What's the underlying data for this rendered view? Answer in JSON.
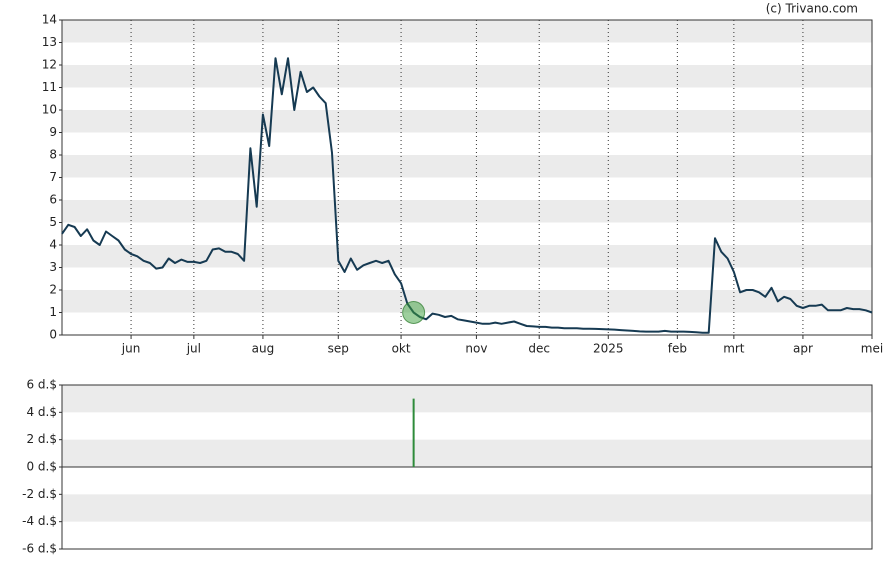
{
  "attribution": "(c) Trivano.com",
  "chart_data": [
    {
      "type": "line",
      "color": "#163a52",
      "categories": [
        null,
        null,
        null,
        null,
        null,
        null,
        null,
        null,
        null,
        null,
        null,
        "jun",
        null,
        null,
        null,
        null,
        null,
        null,
        null,
        null,
        null,
        "jul",
        null,
        null,
        null,
        null,
        null,
        null,
        null,
        null,
        null,
        null,
        "aug",
        null,
        null,
        null,
        null,
        null,
        null,
        null,
        null,
        null,
        null,
        null,
        "sep",
        null,
        null,
        null,
        null,
        null,
        null,
        null,
        null,
        null,
        "okt",
        null,
        null,
        null,
        null,
        null,
        null,
        null,
        null,
        null,
        null,
        null,
        "nov",
        null,
        null,
        null,
        null,
        null,
        null,
        null,
        null,
        null,
        "dec",
        null,
        null,
        null,
        null,
        null,
        null,
        null,
        null,
        null,
        null,
        "2025",
        null,
        null,
        null,
        null,
        null,
        null,
        null,
        null,
        null,
        null,
        "feb",
        null,
        null,
        null,
        null,
        null,
        null,
        null,
        null,
        "mrt",
        null,
        null,
        null,
        null,
        null,
        null,
        null,
        null,
        null,
        null,
        "apr",
        null,
        null,
        null,
        null,
        null,
        null,
        null,
        null,
        null,
        null,
        "mei"
      ],
      "values": [
        4.5,
        4.9,
        4.8,
        4.4,
        4.7,
        4.2,
        4.0,
        4.6,
        4.4,
        4.2,
        3.8,
        3.6,
        3.5,
        3.3,
        3.2,
        2.95,
        3.0,
        3.4,
        3.2,
        3.35,
        3.25,
        3.25,
        3.2,
        3.3,
        3.8,
        3.85,
        3.7,
        3.7,
        3.6,
        3.3,
        8.3,
        5.7,
        9.8,
        8.4,
        12.3,
        10.7,
        12.3,
        10.0,
        11.7,
        10.8,
        11.0,
        10.6,
        10.3,
        8.1,
        3.3,
        2.8,
        3.4,
        2.9,
        3.1,
        3.2,
        3.3,
        3.2,
        3.3,
        2.7,
        2.3,
        1.4,
        1.0,
        0.8,
        0.7,
        0.95,
        0.9,
        0.8,
        0.85,
        0.7,
        0.65,
        0.6,
        0.55,
        0.5,
        0.5,
        0.55,
        0.5,
        0.55,
        0.6,
        0.5,
        0.4,
        0.38,
        0.36,
        0.36,
        0.33,
        0.33,
        0.3,
        0.3,
        0.3,
        0.28,
        0.28,
        0.27,
        0.26,
        0.25,
        0.24,
        0.22,
        0.2,
        0.18,
        0.16,
        0.15,
        0.15,
        0.15,
        0.18,
        0.15,
        0.15,
        0.15,
        0.14,
        0.12,
        0.1,
        0.1,
        4.3,
        3.7,
        3.4,
        2.8,
        1.9,
        2.0,
        2.0,
        1.9,
        1.7,
        2.1,
        1.5,
        1.7,
        1.6,
        1.3,
        1.2,
        1.3,
        1.3,
        1.35,
        1.1,
        1.1,
        1.1,
        1.2,
        1.15,
        1.15,
        1.1,
        1.0
      ],
      "ylim": [
        0,
        14
      ],
      "yticks": [
        0,
        1,
        2,
        3,
        4,
        5,
        6,
        7,
        8,
        9,
        10,
        11,
        12,
        13,
        14
      ],
      "grid": true
    },
    {
      "type": "bar",
      "color": "#2e8b3a",
      "values": [
        null,
        null,
        null,
        null,
        null,
        null,
        null,
        null,
        null,
        null,
        null,
        null,
        null,
        null,
        null,
        null,
        null,
        null,
        null,
        null,
        null,
        null,
        null,
        null,
        null,
        null,
        null,
        null,
        null,
        null,
        null,
        null,
        null,
        null,
        null,
        null,
        null,
        null,
        null,
        null,
        null,
        null,
        null,
        null,
        null,
        null,
        null,
        null,
        null,
        null,
        null,
        null,
        null,
        null,
        null,
        null,
        5,
        null,
        null,
        null,
        null,
        null,
        null,
        null,
        null,
        null,
        null,
        null,
        null,
        null,
        null,
        null,
        null,
        null,
        null,
        null,
        null,
        null,
        null,
        null,
        null,
        null,
        null,
        null,
        null,
        null,
        null,
        null,
        null,
        null,
        null,
        null,
        null,
        null,
        null,
        null,
        null,
        null,
        null,
        null,
        null,
        null,
        null,
        null,
        null,
        null,
        null,
        null,
        null,
        null,
        null,
        null,
        null,
        null,
        null,
        null,
        null,
        null,
        null,
        null,
        null,
        null,
        null,
        null,
        null,
        null,
        null,
        null,
        null,
        null
      ],
      "ylim": [
        -6,
        6
      ],
      "yticks": [
        {
          "value": -6,
          "label": "-6 d.$"
        },
        {
          "value": -4,
          "label": "-4 d.$"
        },
        {
          "value": -2,
          "label": "-2 d.$"
        },
        {
          "value": 0,
          "label": "0 d.$"
        },
        {
          "value": 2,
          "label": "2 d.$"
        },
        {
          "value": 4,
          "label": "4 d.$"
        },
        {
          "value": 6,
          "label": "6 d.$"
        }
      ],
      "grid": true
    }
  ]
}
